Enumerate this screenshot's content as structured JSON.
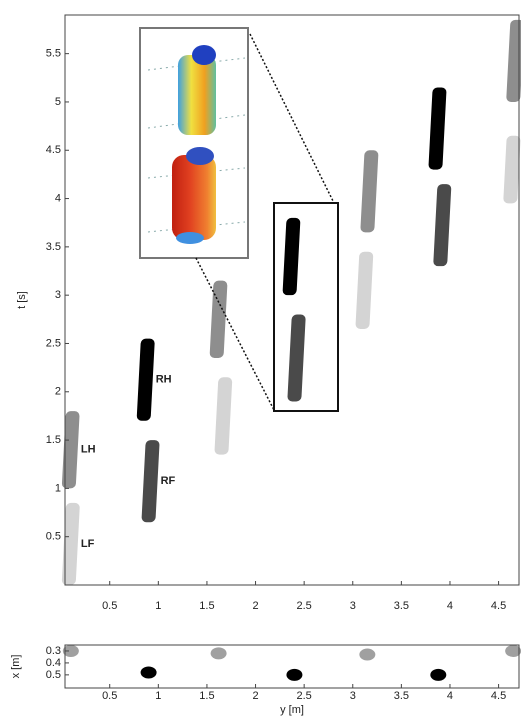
{
  "chart_data": [
    {
      "type": "footprints",
      "ylabel": "t [s]",
      "xlim": [
        0.04,
        4.71
      ],
      "ylim": [
        0,
        5.9
      ],
      "xticks": [
        0.5,
        1,
        1.5,
        2,
        2.5,
        3,
        3.5,
        4,
        4.5
      ],
      "yticks": [
        0.5,
        1,
        1.5,
        2,
        2.5,
        3,
        3.5,
        4,
        4.5,
        5,
        5.5
      ],
      "series": [
        {
          "name": "LF",
          "color": "#d4d4d4",
          "y": [
            0.08,
            1.65,
            3.1,
            4.62
          ],
          "t_start": [
            0,
            1.35,
            2.65,
            3.95
          ],
          "t_end": [
            0.85,
            2.15,
            3.45,
            4.65
          ]
        },
        {
          "name": "LH",
          "color": "#8e8e8e",
          "y": [
            0.08,
            1.6,
            3.15,
            4.65
          ],
          "t_start": [
            1.0,
            2.35,
            3.65,
            5.0
          ],
          "t_end": [
            1.8,
            3.15,
            4.5,
            5.85
          ]
        },
        {
          "name": "RF",
          "color": "#4a4a4a",
          "y": [
            0.9,
            2.4,
            3.9
          ],
          "t_start": [
            0.65,
            1.9,
            3.3
          ],
          "t_end": [
            1.5,
            2.8,
            4.15
          ]
        },
        {
          "name": "RH",
          "color": "#000000",
          "y": [
            0.85,
            2.35,
            3.85
          ],
          "t_start": [
            1.7,
            3.0,
            4.3
          ],
          "t_end": [
            2.55,
            3.8,
            5.15
          ]
        }
      ]
    },
    {
      "type": "scatter",
      "xlabel": "y [m]",
      "ylabel": "x [m]",
      "xlim": [
        0.04,
        4.71
      ],
      "ylim": [
        0.25,
        0.61
      ],
      "y_reversed": true,
      "xticks": [
        0.5,
        1,
        1.5,
        2,
        2.5,
        3,
        3.5,
        4,
        4.5
      ],
      "yticks": [
        0.3,
        0.4,
        0.5
      ],
      "series": [
        {
          "color": "#a0a0a0",
          "x": [
            0.1,
            1.62,
            3.15,
            4.65
          ],
          "values": [
            0.3,
            0.32,
            0.33,
            0.3
          ]
        },
        {
          "color": "#000000",
          "x": [
            0.9,
            2.4,
            3.88
          ],
          "values": [
            0.48,
            0.5,
            0.5
          ]
        }
      ]
    }
  ]
}
